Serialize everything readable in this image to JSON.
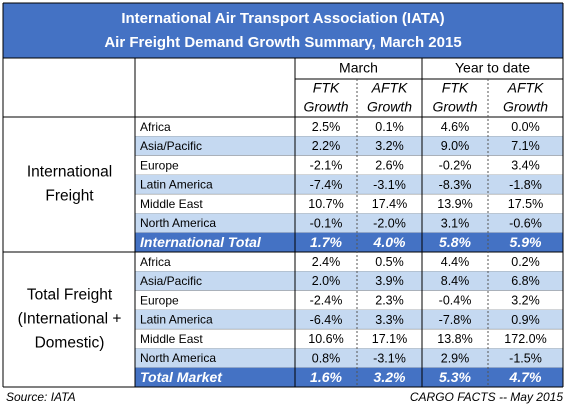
{
  "title": [
    "International Air Transport Association (IATA)",
    "Air Freight Demand Growth Summary, March 2015"
  ],
  "header": {
    "groups": [
      "March",
      "Year to date"
    ],
    "columns": [
      [
        "FTK",
        "Growth"
      ],
      [
        "AFTK",
        "Growth"
      ],
      [
        "FTK",
        "Growth"
      ],
      [
        "AFTK",
        "Growth"
      ]
    ]
  },
  "sections": [
    {
      "label": [
        "International",
        "Freight"
      ],
      "rows": [
        {
          "region": "Africa",
          "values": [
            "2.5%",
            "0.1%",
            "4.6%",
            "0.0%"
          ]
        },
        {
          "region": "Asia/Pacific",
          "values": [
            "2.2%",
            "3.2%",
            "9.0%",
            "7.1%"
          ]
        },
        {
          "region": "Europe",
          "values": [
            "-2.1%",
            "2.6%",
            "-0.2%",
            "3.4%"
          ]
        },
        {
          "region": "Latin America",
          "values": [
            "-7.4%",
            "-3.1%",
            "-8.3%",
            "-1.8%"
          ]
        },
        {
          "region": "Middle East",
          "values": [
            "10.7%",
            "17.4%",
            "13.9%",
            "17.5%"
          ]
        },
        {
          "region": "North America",
          "values": [
            "-0.1%",
            "-2.0%",
            "3.1%",
            "-0.6%"
          ]
        }
      ],
      "total": {
        "label": "International Total",
        "values": [
          "1.7%",
          "4.0%",
          "5.8%",
          "5.9%"
        ]
      }
    },
    {
      "label": [
        "Total Freight",
        "(International +",
        "Domestic)"
      ],
      "rows": [
        {
          "region": "Africa",
          "values": [
            "2.4%",
            "0.5%",
            "4.4%",
            "0.2%"
          ]
        },
        {
          "region": "Asia/Pacific",
          "values": [
            "2.0%",
            "3.9%",
            "8.4%",
            "6.8%"
          ]
        },
        {
          "region": "Europe",
          "values": [
            "-2.4%",
            "2.3%",
            "-0.4%",
            "3.2%"
          ]
        },
        {
          "region": "Latin America",
          "values": [
            "-6.4%",
            "3.3%",
            "-7.8%",
            "0.9%"
          ]
        },
        {
          "region": "Middle East",
          "values": [
            "10.6%",
            "17.1%",
            "13.8%",
            "172.0%"
          ]
        },
        {
          "region": "North America",
          "values": [
            "0.8%",
            "-3.1%",
            "2.9%",
            "-1.5%"
          ]
        }
      ],
      "total": {
        "label": "Total Market",
        "values": [
          "1.6%",
          "3.2%",
          "5.3%",
          "4.7%"
        ]
      }
    }
  ],
  "footer": {
    "source": "Source: IATA",
    "credit": "CARGO FACTS -- May 2015"
  }
}
